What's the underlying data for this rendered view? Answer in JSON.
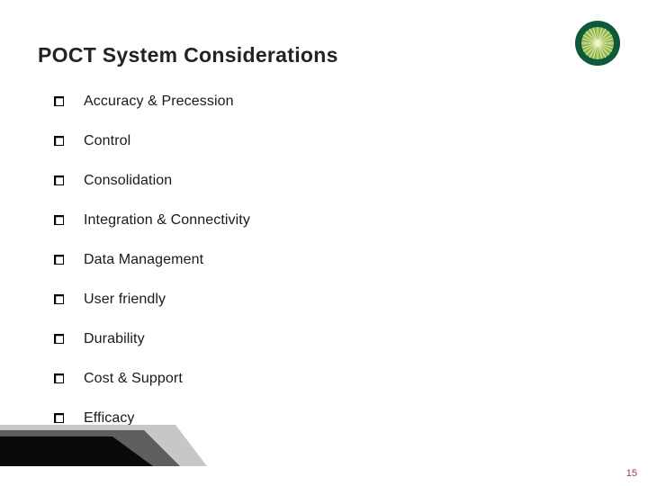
{
  "title": "POCT System Considerations",
  "title_color": "#232323",
  "title_fontsize": 23,
  "bullets": [
    "Accuracy & Precession",
    "Control",
    "Consolidation",
    "Integration & Connectivity",
    "Data Management",
    "User friendly",
    "Durability",
    "Cost & Support",
    "Efficacy"
  ],
  "bullet_fontsize": 16,
  "bullet_color": "#1a1a1a",
  "page_number": "15",
  "page_number_color": "#a04040",
  "logo": {
    "outer_color": "#0c5a3a",
    "inner_color": "#8fb850",
    "ray_color": "#f4f0c0"
  },
  "decor_colors": {
    "back": "#c7c7c9",
    "mid": "#5f5f61",
    "front": "#0a0a0a"
  },
  "background_color": "#ffffff"
}
